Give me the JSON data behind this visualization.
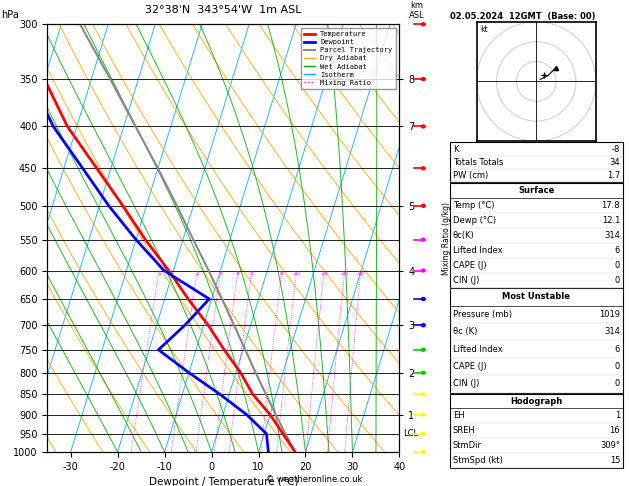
{
  "title_left": "32°38'N  343°54'W  1m ASL",
  "title_right": "02.05.2024  12GMT  (Base: 00)",
  "xlabel": "Dewpoint / Temperature (°C)",
  "p_levels": [
    300,
    350,
    400,
    450,
    500,
    550,
    600,
    650,
    700,
    750,
    800,
    850,
    900,
    950,
    1000
  ],
  "x_min": -35,
  "x_max": 40,
  "skew_factor": 28.0,
  "temp_data": {
    "pressure": [
      1000,
      950,
      900,
      850,
      800,
      750,
      700,
      650,
      600,
      550,
      500,
      450,
      400,
      350,
      300
    ],
    "temp": [
      17.8,
      14.0,
      10.0,
      5.0,
      1.0,
      -4.0,
      -9.0,
      -15.0,
      -21.0,
      -28.0,
      -35.0,
      -43.0,
      -52.0,
      -60.0,
      -67.0
    ]
  },
  "dewp_data": {
    "pressure": [
      1000,
      950,
      900,
      850,
      800,
      750,
      700,
      650,
      600,
      550,
      500,
      450,
      400,
      350,
      300
    ],
    "dewp": [
      12.1,
      10.5,
      5.0,
      -2.0,
      -10.0,
      -18.0,
      -14.0,
      -10.5,
      -22.0,
      -30.0,
      -38.0,
      -46.0,
      -55.0,
      -63.0,
      -70.0
    ]
  },
  "parcel_data": {
    "pressure": [
      1000,
      950,
      900,
      850,
      800,
      750,
      700,
      650,
      600,
      550,
      500,
      450,
      400,
      350,
      300
    ],
    "temp": [
      17.8,
      14.5,
      11.2,
      7.8,
      4.2,
      0.5,
      -3.5,
      -7.8,
      -12.5,
      -17.8,
      -23.5,
      -30.0,
      -37.5,
      -46.0,
      -56.0
    ]
  },
  "colors": {
    "temperature": "#FF0000",
    "dewpoint": "#0000FF",
    "parcel": "#888888",
    "dry_adiabat": "#FFA500",
    "wet_adiabat": "#00AA00",
    "isotherm": "#00AAFF",
    "mixing_ratio": "#FF00FF",
    "background": "#FFFFFF",
    "grid": "#000000"
  },
  "km_pressures": [
    900,
    800,
    700,
    600,
    500,
    400,
    350
  ],
  "km_values": [
    1,
    2,
    3,
    4,
    5,
    7,
    8
  ],
  "mixing_ratio_vals": [
    1,
    2,
    3,
    4,
    5,
    8,
    10,
    15,
    20,
    25
  ],
  "stats": {
    "K": "-8",
    "Totals_Totals": "34",
    "PW_cm": "1.7",
    "Surface_Temp": "17.8",
    "Surface_Dewp": "12.1",
    "Surface_ThetaE": "314",
    "Surface_LiftedIndex": "6",
    "Surface_CAPE": "0",
    "Surface_CIN": "0",
    "MU_Pressure": "1019",
    "MU_ThetaE": "314",
    "MU_LiftedIndex": "6",
    "MU_CAPE": "0",
    "MU_CIN": "0",
    "EH": "1",
    "SREH": "16",
    "StmDir": "309°",
    "StmSpd_kt": "15"
  },
  "lcl_pressure": 950,
  "copyright": "© weatheronline.co.uk",
  "wind_levels": [
    1000,
    950,
    900,
    850,
    800,
    750,
    700,
    650,
    600,
    550,
    500,
    450,
    400,
    350,
    300
  ],
  "wind_colors": [
    "#FFFF00",
    "#FFFF00",
    "#FFFF00",
    "#FFFF00",
    "#00FF00",
    "#00FF00",
    "#0000FF",
    "#0000FF",
    "#FF00FF",
    "#FF00FF",
    "#FF0000",
    "#FF0000",
    "#FF0000",
    "#FF0000",
    "#FF0000"
  ]
}
